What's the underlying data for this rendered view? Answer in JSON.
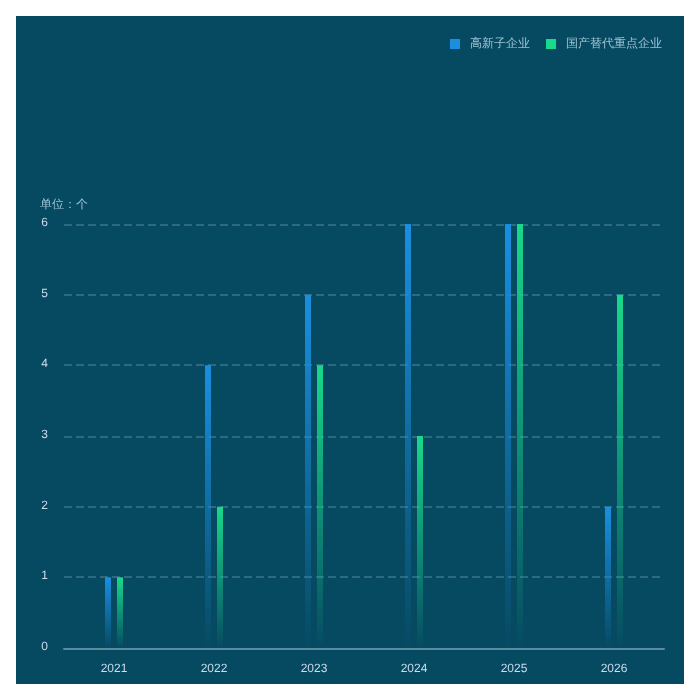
{
  "chart_data": {
    "type": "bar",
    "ylabel": "单位：个",
    "categories": [
      "2021",
      "2022",
      "2023",
      "2024",
      "2025",
      "2026"
    ],
    "series": [
      {
        "name": "高新子企业",
        "color": "#1a8fe0",
        "values": [
          1,
          4,
          5,
          6,
          6,
          2
        ]
      },
      {
        "name": "国产替代重点企业",
        "color": "#19d98a",
        "values": [
          1,
          2,
          4,
          3,
          6,
          5
        ]
      }
    ],
    "ylim": [
      0,
      6
    ],
    "yticks": [
      0,
      1,
      2,
      3,
      4,
      5,
      6
    ],
    "grid": "y",
    "legend": "top right"
  }
}
